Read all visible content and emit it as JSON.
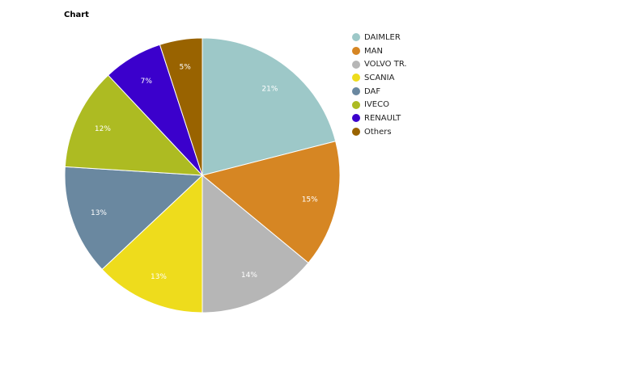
{
  "chart_data": {
    "type": "pie",
    "title": "Chart",
    "categories": [
      "DAIMLER",
      "MAN",
      "VOLVO TR.",
      "SCANIA",
      "DAF",
      "IVECO",
      "RENAULT",
      "Others"
    ],
    "values": [
      21,
      15,
      14,
      13,
      13,
      12,
      7,
      5
    ],
    "labels": [
      "21%",
      "15%",
      "14%",
      "13%",
      "13%",
      "12%",
      "7%",
      "5%"
    ],
    "colors": [
      "#9dc8c8",
      "#d68623",
      "#b6b6b6",
      "#eedc1c",
      "#6a88a0",
      "#adbb22",
      "#3b00cc",
      "#996300"
    ],
    "legend_position": "right"
  }
}
